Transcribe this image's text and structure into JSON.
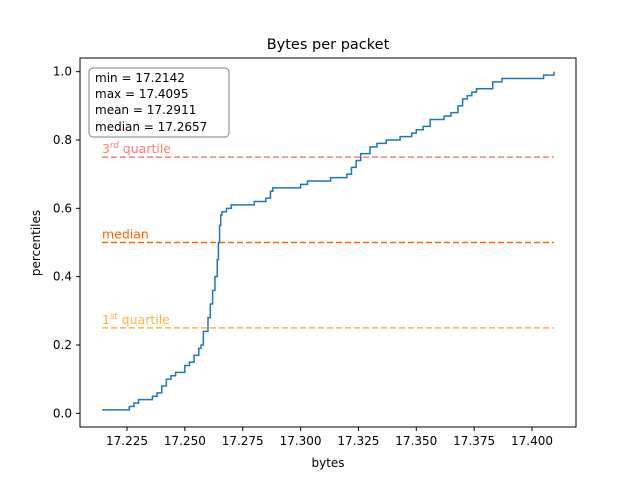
{
  "chart_data": {
    "type": "line",
    "title": "Bytes per packet",
    "xlabel": "bytes",
    "ylabel": "percentiles",
    "xlim": [
      17.2047,
      17.419
    ],
    "ylim": [
      -0.04,
      1.04
    ],
    "xticks": [
      17.225,
      17.25,
      17.275,
      17.3,
      17.325,
      17.35,
      17.375,
      17.4
    ],
    "xtick_labels": [
      "17.225",
      "17.250",
      "17.275",
      "17.300",
      "17.325",
      "17.350",
      "17.375",
      "17.400"
    ],
    "yticks": [
      0.0,
      0.2,
      0.4,
      0.6,
      0.8,
      1.0
    ],
    "ytick_labels": [
      "0.0",
      "0.2",
      "0.4",
      "0.6",
      "0.8",
      "1.0"
    ],
    "grid": false,
    "series": [
      {
        "color": "#1f77b4",
        "step": true,
        "x": [
          17.2142,
          17.226,
          17.228,
          17.23,
          17.236,
          17.238,
          17.24,
          17.242,
          17.244,
          17.246,
          17.25,
          17.252,
          17.254,
          17.256,
          17.257,
          17.258,
          17.26,
          17.261,
          17.262,
          17.263,
          17.264,
          17.2645,
          17.265,
          17.2655,
          17.266,
          17.268,
          17.27,
          17.275,
          17.28,
          17.285,
          17.287,
          17.288,
          17.3,
          17.303,
          17.313,
          17.32,
          17.322,
          17.324,
          17.326,
          17.33,
          17.333,
          17.337,
          17.343,
          17.348,
          17.35,
          17.353,
          17.356,
          17.36,
          17.362,
          17.365,
          17.368,
          17.37,
          17.372,
          17.374,
          17.376,
          17.378,
          17.383,
          17.387,
          17.39,
          17.405,
          17.4095
        ],
        "y": [
          0.01,
          0.02,
          0.03,
          0.04,
          0.05,
          0.06,
          0.08,
          0.1,
          0.11,
          0.12,
          0.14,
          0.15,
          0.17,
          0.19,
          0.2,
          0.24,
          0.28,
          0.32,
          0.36,
          0.4,
          0.45,
          0.5,
          0.55,
          0.58,
          0.59,
          0.6,
          0.61,
          0.61,
          0.62,
          0.63,
          0.65,
          0.66,
          0.67,
          0.68,
          0.69,
          0.7,
          0.72,
          0.74,
          0.76,
          0.78,
          0.79,
          0.8,
          0.81,
          0.82,
          0.83,
          0.84,
          0.86,
          0.86,
          0.87,
          0.88,
          0.9,
          0.92,
          0.93,
          0.94,
          0.95,
          0.95,
          0.97,
          0.98,
          0.98,
          0.99,
          1.0
        ]
      }
    ],
    "reference_lines": [
      {
        "y": 0.75,
        "color": "#fa8072",
        "style": "dashed",
        "label_base": "3",
        "label_sup": "rd",
        "label_rest": " quartile"
      },
      {
        "y": 0.5,
        "color": "#ff6400",
        "style": "dashed",
        "label_base": "median",
        "label_sup": "",
        "label_rest": ""
      },
      {
        "y": 0.25,
        "color": "#ffb347",
        "style": "dashed",
        "label_base": "1",
        "label_sup": "st",
        "label_rest": " quartile"
      }
    ],
    "stats": [
      {
        "label": "min = 17.2142"
      },
      {
        "label": "max = 17.4095"
      },
      {
        "label": "mean = 17.2911"
      },
      {
        "label": "median = 17.2657"
      }
    ]
  }
}
